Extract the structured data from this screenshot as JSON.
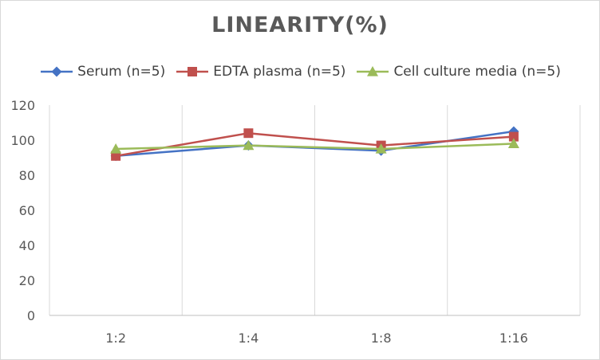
{
  "chart_data": {
    "type": "line",
    "title": "LINEARITY(%)",
    "categories": [
      "1:2",
      "1:4",
      "1:8",
      "1:16"
    ],
    "series": [
      {
        "name": "Serum (n=5)",
        "values": [
          91,
          97,
          94,
          105
        ],
        "color": "#4472c4",
        "marker": "diamond"
      },
      {
        "name": "EDTA plasma (n=5)",
        "values": [
          91,
          104,
          97,
          102
        ],
        "color": "#c0504d",
        "marker": "square"
      },
      {
        "name": "Cell culture media (n=5)",
        "values": [
          95,
          97,
          95,
          98
        ],
        "color": "#9bbb59",
        "marker": "triangle"
      }
    ],
    "ylim": [
      0,
      120
    ],
    "yticks": [
      0,
      20,
      40,
      60,
      80,
      100,
      120
    ],
    "grid": "vertical",
    "legend": "top"
  }
}
